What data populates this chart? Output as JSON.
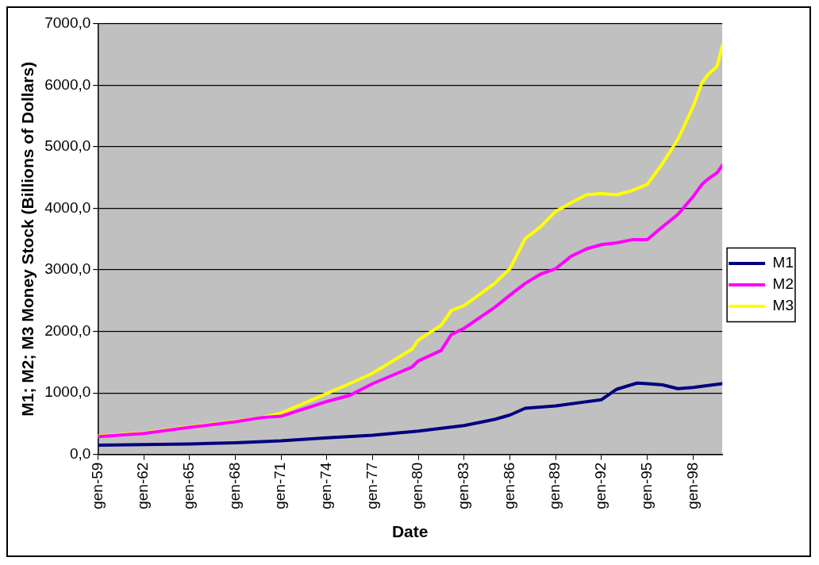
{
  "chart_data": {
    "type": "line",
    "xlabel": "Date",
    "ylabel": "M1; M2; M3 Money Stock (Billions of Dollars)",
    "xlim": [
      "1959-01",
      "1999-12"
    ],
    "xticks": [
      {
        "value": "1959-01",
        "label": "gen-59"
      },
      {
        "value": "1962-01",
        "label": "gen-62"
      },
      {
        "value": "1965-01",
        "label": "gen-65"
      },
      {
        "value": "1968-01",
        "label": "gen-68"
      },
      {
        "value": "1971-01",
        "label": "gen-71"
      },
      {
        "value": "1974-01",
        "label": "gen-74"
      },
      {
        "value": "1977-01",
        "label": "gen-77"
      },
      {
        "value": "1980-01",
        "label": "gen-80"
      },
      {
        "value": "1983-01",
        "label": "gen-83"
      },
      {
        "value": "1986-01",
        "label": "gen-86"
      },
      {
        "value": "1989-01",
        "label": "gen-89"
      },
      {
        "value": "1992-01",
        "label": "gen-92"
      },
      {
        "value": "1995-01",
        "label": "gen-95"
      },
      {
        "value": "1998-01",
        "label": "gen-98"
      }
    ],
    "ylim": [
      0,
      7000
    ],
    "yticks": [
      {
        "value": 0,
        "label": "0,0"
      },
      {
        "value": 1000,
        "label": "1000,0"
      },
      {
        "value": 2000,
        "label": "2000,0"
      },
      {
        "value": 3000,
        "label": "3000,0"
      },
      {
        "value": 4000,
        "label": "4000,0"
      },
      {
        "value": 5000,
        "label": "5000,0"
      },
      {
        "value": 6000,
        "label": "6000,0"
      },
      {
        "value": 7000,
        "label": "7000,0"
      }
    ],
    "grid": "y",
    "legend": "right",
    "marker": "none",
    "line_style": "solid",
    "series": [
      {
        "name": "M1",
        "color": "#000080",
        "x": [
          "1959-01",
          "1965-01",
          "1968-01",
          "1971-01",
          "1974-01",
          "1977-01",
          "1979-08",
          "1980-01",
          "1983-01",
          "1985-01",
          "1986-01",
          "1987-01",
          "1989-01",
          "1992-01",
          "1993-01",
          "1994-05",
          "1995-01",
          "1996-01",
          "1997-01",
          "1998-01",
          "1999-01",
          "1999-12"
        ],
        "values": [
          150,
          170,
          190,
          220,
          270,
          310,
          370,
          380,
          470,
          570,
          640,
          750,
          790,
          890,
          1060,
          1160,
          1150,
          1130,
          1070,
          1090,
          1120,
          1150
        ]
      },
      {
        "name": "M2",
        "color": "#ff00ff",
        "x": [
          "1959-01",
          "1962-01",
          "1965-01",
          "1968-01",
          "1969-10",
          "1971-01",
          "1974-01",
          "1975-07",
          "1977-01",
          "1979-08",
          "1980-01",
          "1981-07",
          "1982-03",
          "1983-01",
          "1985-01",
          "1986-01",
          "1987-01",
          "1988-01",
          "1989-01",
          "1990-01",
          "1991-01",
          "1992-01",
          "1993-01",
          "1994-01",
          "1995-01",
          "1996-01",
          "1997-01",
          "1998-01",
          "1998-08",
          "1999-01",
          "1999-08",
          "1999-12"
        ],
        "values": [
          290,
          340,
          440,
          530,
          600,
          620,
          860,
          960,
          1150,
          1420,
          1520,
          1690,
          1950,
          2050,
          2390,
          2590,
          2780,
          2930,
          3020,
          3220,
          3340,
          3410,
          3440,
          3490,
          3490,
          3700,
          3900,
          4190,
          4390,
          4480,
          4580,
          4700
        ]
      },
      {
        "name": "M3",
        "color": "#ffff00",
        "x": [
          "1959-01",
          "1962-01",
          "1965-01",
          "1968-01",
          "1969-10",
          "1971-01",
          "1974-01",
          "1975-07",
          "1977-01",
          "1979-08",
          "1980-01",
          "1981-07",
          "1982-03",
          "1983-01",
          "1985-01",
          "1986-01",
          "1987-01",
          "1988-01",
          "1989-01",
          "1990-01",
          "1991-01",
          "1992-01",
          "1993-01",
          "1994-01",
          "1995-01",
          "1996-01",
          "1997-01",
          "1998-01",
          "1998-08",
          "1999-01",
          "1999-08",
          "1999-12"
        ],
        "values": [
          300,
          350,
          450,
          540,
          600,
          670,
          990,
          1150,
          1320,
          1710,
          1860,
          2100,
          2340,
          2420,
          2780,
          3020,
          3510,
          3700,
          3950,
          4090,
          4220,
          4240,
          4220,
          4290,
          4390,
          4730,
          5120,
          5650,
          6040,
          6180,
          6310,
          6650
        ]
      }
    ]
  }
}
